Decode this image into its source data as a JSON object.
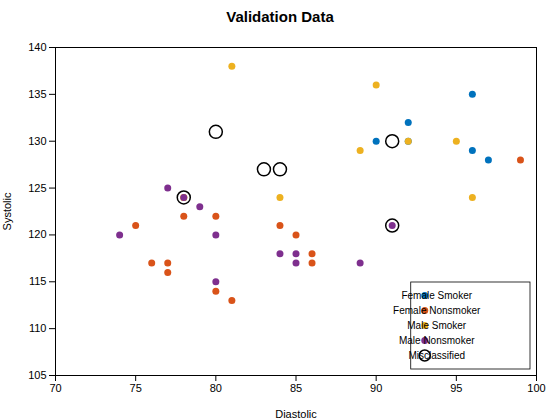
{
  "chart_data": {
    "type": "scatter",
    "title": "Validation Data",
    "xlabel": "Diastolic",
    "ylabel": "Systolic",
    "xlim": [
      70,
      100
    ],
    "ylim": [
      105,
      140
    ],
    "xticks": [
      70,
      75,
      80,
      85,
      90,
      95,
      100
    ],
    "yticks": [
      105,
      110,
      115,
      120,
      125,
      130,
      135,
      140
    ],
    "grid": false,
    "legend": "lower right",
    "series": [
      {
        "name": "Female Smoker",
        "color": "#0072BD",
        "marker": "circle",
        "x": [
          90,
          92,
          92,
          96,
          96,
          97
        ],
        "values": [
          130,
          132,
          130,
          135,
          129,
          128
        ]
      },
      {
        "name": "Female Nonsmoker",
        "color": "#D95319",
        "marker": "circle",
        "x": [
          75,
          76,
          77,
          77,
          78,
          80,
          80,
          81,
          84,
          85,
          86,
          86,
          99
        ],
        "values": [
          121,
          117,
          117,
          116,
          122,
          122,
          114,
          113,
          121,
          120,
          118,
          117,
          128
        ]
      },
      {
        "name": "Male Smoker",
        "color": "#EDB120",
        "marker": "circle",
        "x": [
          78,
          78,
          81,
          84,
          89,
          90,
          92,
          95,
          96
        ],
        "values": [
          124,
          124,
          138,
          124,
          129,
          136,
          130,
          130,
          124
        ]
      },
      {
        "name": "Male Nonsmoker",
        "color": "#7E2F8E",
        "marker": "circle",
        "x": [
          74,
          77,
          78,
          79,
          80,
          80,
          84,
          85,
          85,
          89,
          91
        ],
        "values": [
          120,
          125,
          124,
          123,
          120,
          115,
          118,
          118,
          117,
          117,
          121
        ]
      },
      {
        "name": "Misclassified",
        "color": "black",
        "marker": "open_circle",
        "x": [
          78,
          80,
          83,
          84,
          91,
          91
        ],
        "values": [
          124,
          131,
          127,
          127,
          121,
          130
        ]
      }
    ]
  }
}
